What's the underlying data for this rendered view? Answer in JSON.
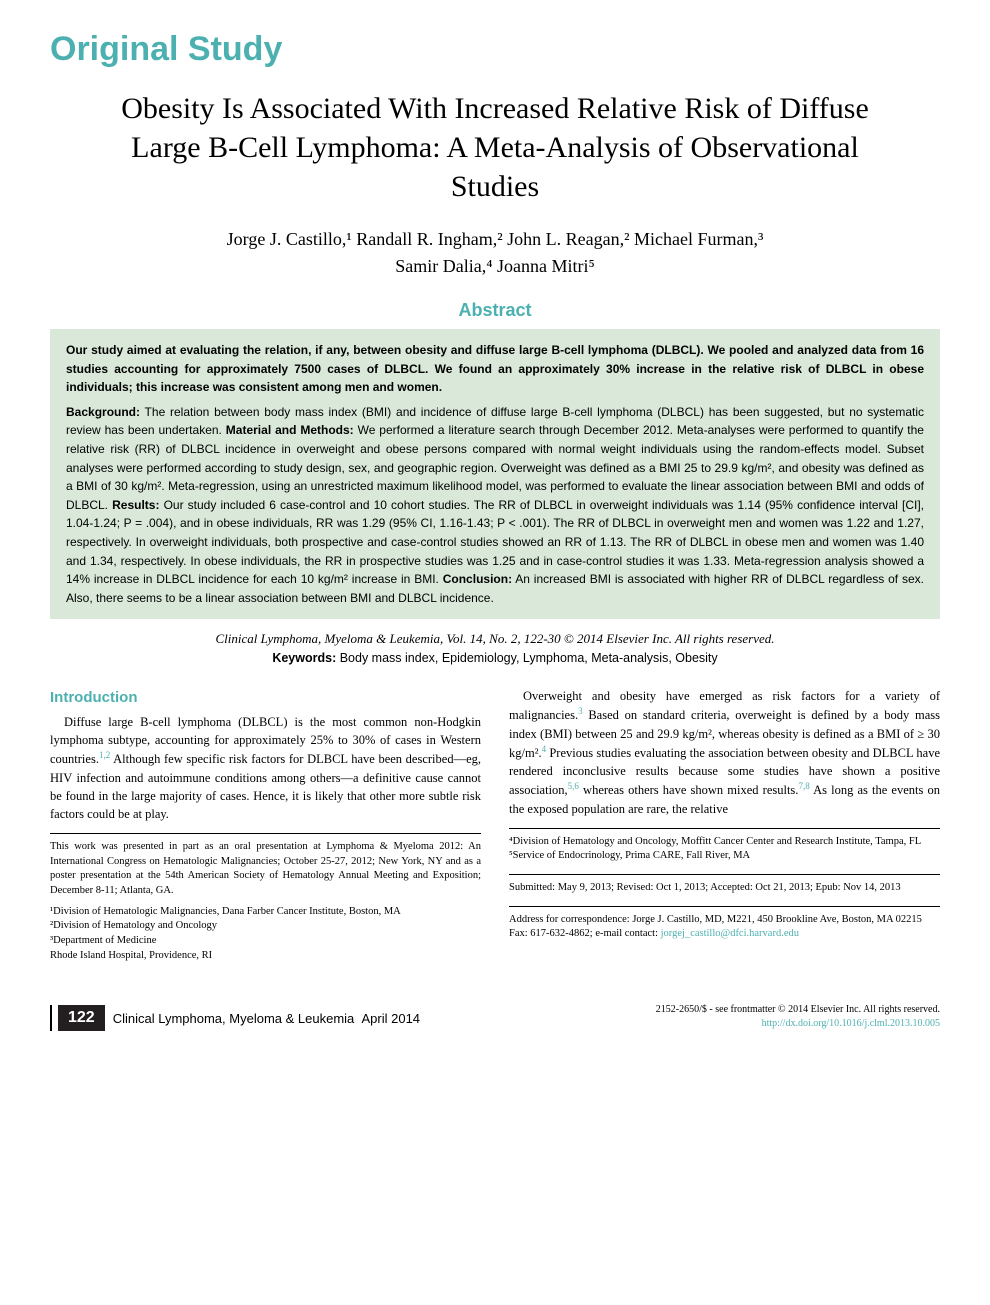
{
  "header": {
    "label": "Original Study"
  },
  "title": "Obesity Is Associated With Increased Relative Risk of Diffuse Large B-Cell Lymphoma: A Meta-Analysis of Observational Studies",
  "authors_line1": "Jorge J. Castillo,¹ Randall R. Ingham,² John L. Reagan,² Michael Furman,³",
  "authors_line2": "Samir Dalia,⁴ Joanna Mitri⁵",
  "abstract": {
    "heading": "Abstract",
    "summary": "Our study aimed at evaluating the relation, if any, between obesity and diffuse large B-cell lymphoma (DLBCL). We pooled and analyzed data from 16 studies accounting for approximately 7500 cases of DLBCL. We found an approximately 30% increase in the relative risk of DLBCL in obese individuals; this increase was consistent among men and women.",
    "sections": {
      "background_label": "Background:",
      "background": " The relation between body mass index (BMI) and incidence of diffuse large B-cell lymphoma (DLBCL) has been suggested, but no systematic review has been undertaken. ",
      "methods_label": "Material and Methods:",
      "methods": " We performed a literature search through December 2012. Meta-analyses were performed to quantify the relative risk (RR) of DLBCL incidence in overweight and obese persons compared with normal weight individuals using the random-effects model. Subset analyses were performed according to study design, sex, and geographic region. Overweight was defined as a BMI 25 to 29.9 kg/m², and obesity was defined as a BMI of 30 kg/m². Meta-regression, using an unrestricted maximum likelihood model, was performed to evaluate the linear association between BMI and odds of DLBCL. ",
      "results_label": "Results:",
      "results": " Our study included 6 case-control and 10 cohort studies. The RR of DLBCL in overweight individuals was 1.14 (95% confidence interval [CI], 1.04-1.24; P = .004), and in obese individuals, RR was 1.29 (95% CI, 1.16-1.43; P < .001). The RR of DLBCL in overweight men and women was 1.22 and 1.27, respectively. In overweight individuals, both prospective and case-control studies showed an RR of 1.13. The RR of DLBCL in obese men and women was 1.40 and 1.34, respectively. In obese individuals, the RR in prospective studies was 1.25 and in case-control studies it was 1.33. Meta-regression analysis showed a 14% increase in DLBCL incidence for each 10 kg/m² increase in BMI. ",
      "conclusion_label": "Conclusion:",
      "conclusion": " An increased BMI is associated with higher RR of DLBCL regardless of sex. Also, there seems to be a linear association between BMI and DLBCL incidence."
    }
  },
  "journal_info": "Clinical Lymphoma, Myeloma & Leukemia, Vol. 14, No. 2, 122-30 © 2014 Elsevier Inc. All rights reserved.",
  "keywords": {
    "label": "Keywords:",
    "text": " Body mass index, Epidemiology, Lymphoma, Meta-analysis, Obesity"
  },
  "introduction": {
    "heading": "Introduction",
    "para1_a": "Diffuse large B-cell lymphoma (DLBCL) is the most common non-Hodgkin lymphoma subtype, accounting for approximately 25% to 30% of cases in Western countries.",
    "para1_ref1": "1,2",
    "para1_b": " Although few specific risk factors for DLBCL have been described—eg, HIV infection and autoimmune conditions among others—a definitive cause cannot be found in the large majority of cases. Hence, it is likely that other more subtle risk factors could be at play.",
    "para2_a": "Overweight and obesity have emerged as risk factors for a variety of malignancies.",
    "para2_ref1": "3",
    "para2_b": " Based on standard criteria, overweight is defined by a body mass index (BMI) between 25 and 29.9 kg/m², whereas obesity is defined as a BMI of ≥ 30 kg/m².",
    "para2_ref2": "4",
    "para2_c": " Previous studies evaluating the association between obesity and DLBCL have rendered inconclusive results because some studies have shown a positive association,",
    "para2_ref3": "5,6",
    "para2_d": " whereas others have shown mixed results.",
    "para2_ref4": "7,8",
    "para2_e": " As long as the events on the exposed population are rare, the relative"
  },
  "footnotes": {
    "presentation": "This work was presented in part as an oral presentation at Lymphoma & Myeloma 2012: An International Congress on Hematologic Malignancies; October 25-27, 2012; New York, NY and as a poster presentation at the 54th American Society of Hematology Annual Meeting and Exposition; December 8-11; Atlanta, GA.",
    "aff1": "¹Division of Hematologic Malignancies, Dana Farber Cancer Institute, Boston, MA",
    "aff2": "²Division of Hematology and Oncology",
    "aff3": "³Department of Medicine",
    "aff3b": "Rhode Island Hospital, Providence, RI",
    "aff4": "⁴Division of Hematology and Oncology, Moffitt Cancer Center and Research Institute, Tampa, FL",
    "aff5": "⁵Service of Endocrinology, Prima CARE, Fall River, MA",
    "dates": "Submitted: May 9, 2013; Revised: Oct 1, 2013; Accepted: Oct 21, 2013; Epub: Nov 14, 2013",
    "correspondence": "Address for correspondence: Jorge J. Castillo, MD, M221, 450 Brookline Ave, Boston, MA 02215",
    "fax": "Fax: 617-632-4862; e-mail contact: ",
    "email": "jorgej_castillo@dfci.harvard.edu"
  },
  "footer": {
    "page": "122",
    "journal": "Clinical Lymphoma, Myeloma & Leukemia",
    "date": "April 2014",
    "copyright": "2152-2650/$ - see frontmatter © 2014 Elsevier Inc. All rights reserved.",
    "doi": "http://dx.doi.org/10.1016/j.clml.2013.10.005"
  },
  "colors": {
    "accent": "#4db0b0",
    "abstract_bg": "#d9e8d9",
    "text": "#000000",
    "page_bg": "#231f20"
  }
}
